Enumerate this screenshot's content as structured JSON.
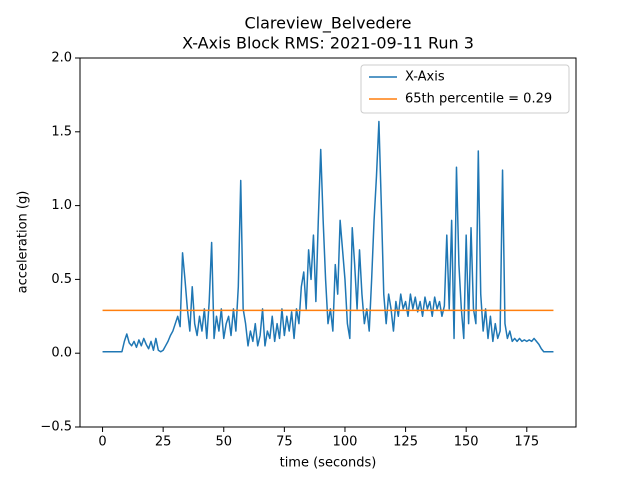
{
  "chart_data": {
    "type": "line",
    "title": "Clareview_Belvedere",
    "subtitle": "X-Axis Block RMS: 2021-09-11 Run 3",
    "x_label": "time (seconds)",
    "y_label": "acceleration (g)",
    "xlim": [
      -9.3,
      195.3
    ],
    "xticks": [
      0,
      25,
      50,
      75,
      100,
      125,
      150,
      175
    ],
    "ylim": [
      -0.5,
      2.0
    ],
    "yticks": [
      {
        "value": -0.5,
        "label": "−0.5"
      },
      {
        "value": 0,
        "label": "0.0"
      },
      {
        "value": 0.5,
        "label": "0.5"
      },
      {
        "value": 1,
        "label": "1.0"
      },
      {
        "value": 1.5,
        "label": "1.5"
      },
      {
        "value": 2,
        "label": "2.0"
      }
    ],
    "grid": false,
    "legend": "upper right",
    "series": [
      {
        "name": "X-Axis",
        "color": "#1f77b4",
        "x": [
          0,
          1,
          2,
          3,
          4,
          5,
          6,
          7,
          8,
          9,
          10,
          11,
          12,
          13,
          14,
          15,
          16,
          17,
          18,
          19,
          20,
          21,
          22,
          23,
          24,
          25,
          26,
          27,
          28,
          29,
          30,
          31,
          32,
          33,
          34,
          35,
          36,
          37,
          38,
          39,
          40,
          41,
          42,
          43,
          44,
          45,
          46,
          47,
          48,
          49,
          50,
          51,
          52,
          53,
          54,
          55,
          56,
          57,
          58,
          59,
          60,
          61,
          62,
          63,
          64,
          65,
          66,
          67,
          68,
          69,
          70,
          71,
          72,
          73,
          74,
          75,
          76,
          77,
          78,
          79,
          80,
          81,
          82,
          83,
          84,
          85,
          86,
          87,
          88,
          89,
          90,
          91,
          92,
          93,
          94,
          95,
          96,
          97,
          98,
          99,
          100,
          101,
          102,
          103,
          104,
          105,
          106,
          107,
          108,
          109,
          110,
          111,
          112,
          113,
          114,
          115,
          116,
          117,
          118,
          119,
          120,
          121,
          122,
          123,
          124,
          125,
          126,
          127,
          128,
          129,
          130,
          131,
          132,
          133,
          134,
          135,
          136,
          137,
          138,
          139,
          140,
          141,
          142,
          143,
          144,
          145,
          146,
          147,
          148,
          149,
          150,
          151,
          152,
          153,
          154,
          155,
          156,
          157,
          158,
          159,
          160,
          161,
          162,
          163,
          164,
          165,
          166,
          167,
          168,
          169,
          170,
          171,
          172,
          173,
          174,
          175,
          176,
          177,
          178,
          179,
          180,
          181,
          182,
          183,
          184,
          185,
          186
        ],
        "values": [
          0.01,
          0.01,
          0.01,
          0.01,
          0.01,
          0.01,
          0.01,
          0.01,
          0.01,
          0.08,
          0.13,
          0.07,
          0.05,
          0.08,
          0.04,
          0.09,
          0.05,
          0.1,
          0.06,
          0.03,
          0.08,
          0.02,
          0.1,
          0.02,
          0.01,
          0.02,
          0.05,
          0.08,
          0.12,
          0.15,
          0.2,
          0.25,
          0.18,
          0.68,
          0.5,
          0.3,
          0.15,
          0.45,
          0.2,
          0.12,
          0.25,
          0.15,
          0.3,
          0.1,
          0.35,
          0.75,
          0.1,
          0.25,
          0.15,
          0.3,
          0.1,
          0.2,
          0.25,
          0.12,
          0.3,
          0.15,
          0.45,
          1.17,
          0.3,
          0.2,
          0.05,
          0.15,
          0.08,
          0.2,
          0.05,
          0.12,
          0.3,
          0.05,
          0.15,
          0.1,
          0.25,
          0.08,
          0.2,
          0.1,
          0.3,
          0.12,
          0.25,
          0.15,
          0.28,
          0.1,
          0.3,
          0.2,
          0.45,
          0.55,
          0.3,
          0.7,
          0.5,
          0.8,
          0.35,
          0.9,
          1.38,
          0.9,
          0.5,
          0.2,
          0.3,
          0.15,
          0.6,
          0.4,
          0.9,
          0.7,
          0.5,
          0.2,
          0.1,
          0.85,
          0.6,
          0.3,
          0.7,
          0.4,
          0.2,
          0.3,
          0.15,
          0.5,
          0.9,
          1.2,
          1.57,
          1.0,
          0.4,
          0.2,
          0.4,
          0.3,
          0.15,
          0.35,
          0.25,
          0.4,
          0.3,
          0.35,
          0.25,
          0.4,
          0.3,
          0.38,
          0.28,
          0.35,
          0.25,
          0.38,
          0.3,
          0.35,
          0.25,
          0.38,
          0.3,
          0.35,
          0.25,
          0.32,
          0.8,
          0.3,
          0.9,
          0.1,
          1.26,
          0.6,
          0.3,
          0.1,
          0.8,
          0.2,
          0.85,
          0.3,
          0.2,
          1.37,
          0.4,
          0.15,
          0.3,
          0.1,
          0.25,
          0.08,
          0.2,
          0.1,
          0.15,
          1.24,
          0.2,
          0.1,
          0.15,
          0.08,
          0.1,
          0.08,
          0.1,
          0.08,
          0.09,
          0.08,
          0.09,
          0.08,
          0.1,
          0.08,
          0.06,
          0.03,
          0.01,
          0.01,
          0.01,
          0.01,
          0.01
        ]
      },
      {
        "name": "65th percentile = 0.29",
        "color": "#ff7f0e",
        "x": [
          0,
          186
        ],
        "values": [
          0.29,
          0.29
        ]
      }
    ]
  }
}
